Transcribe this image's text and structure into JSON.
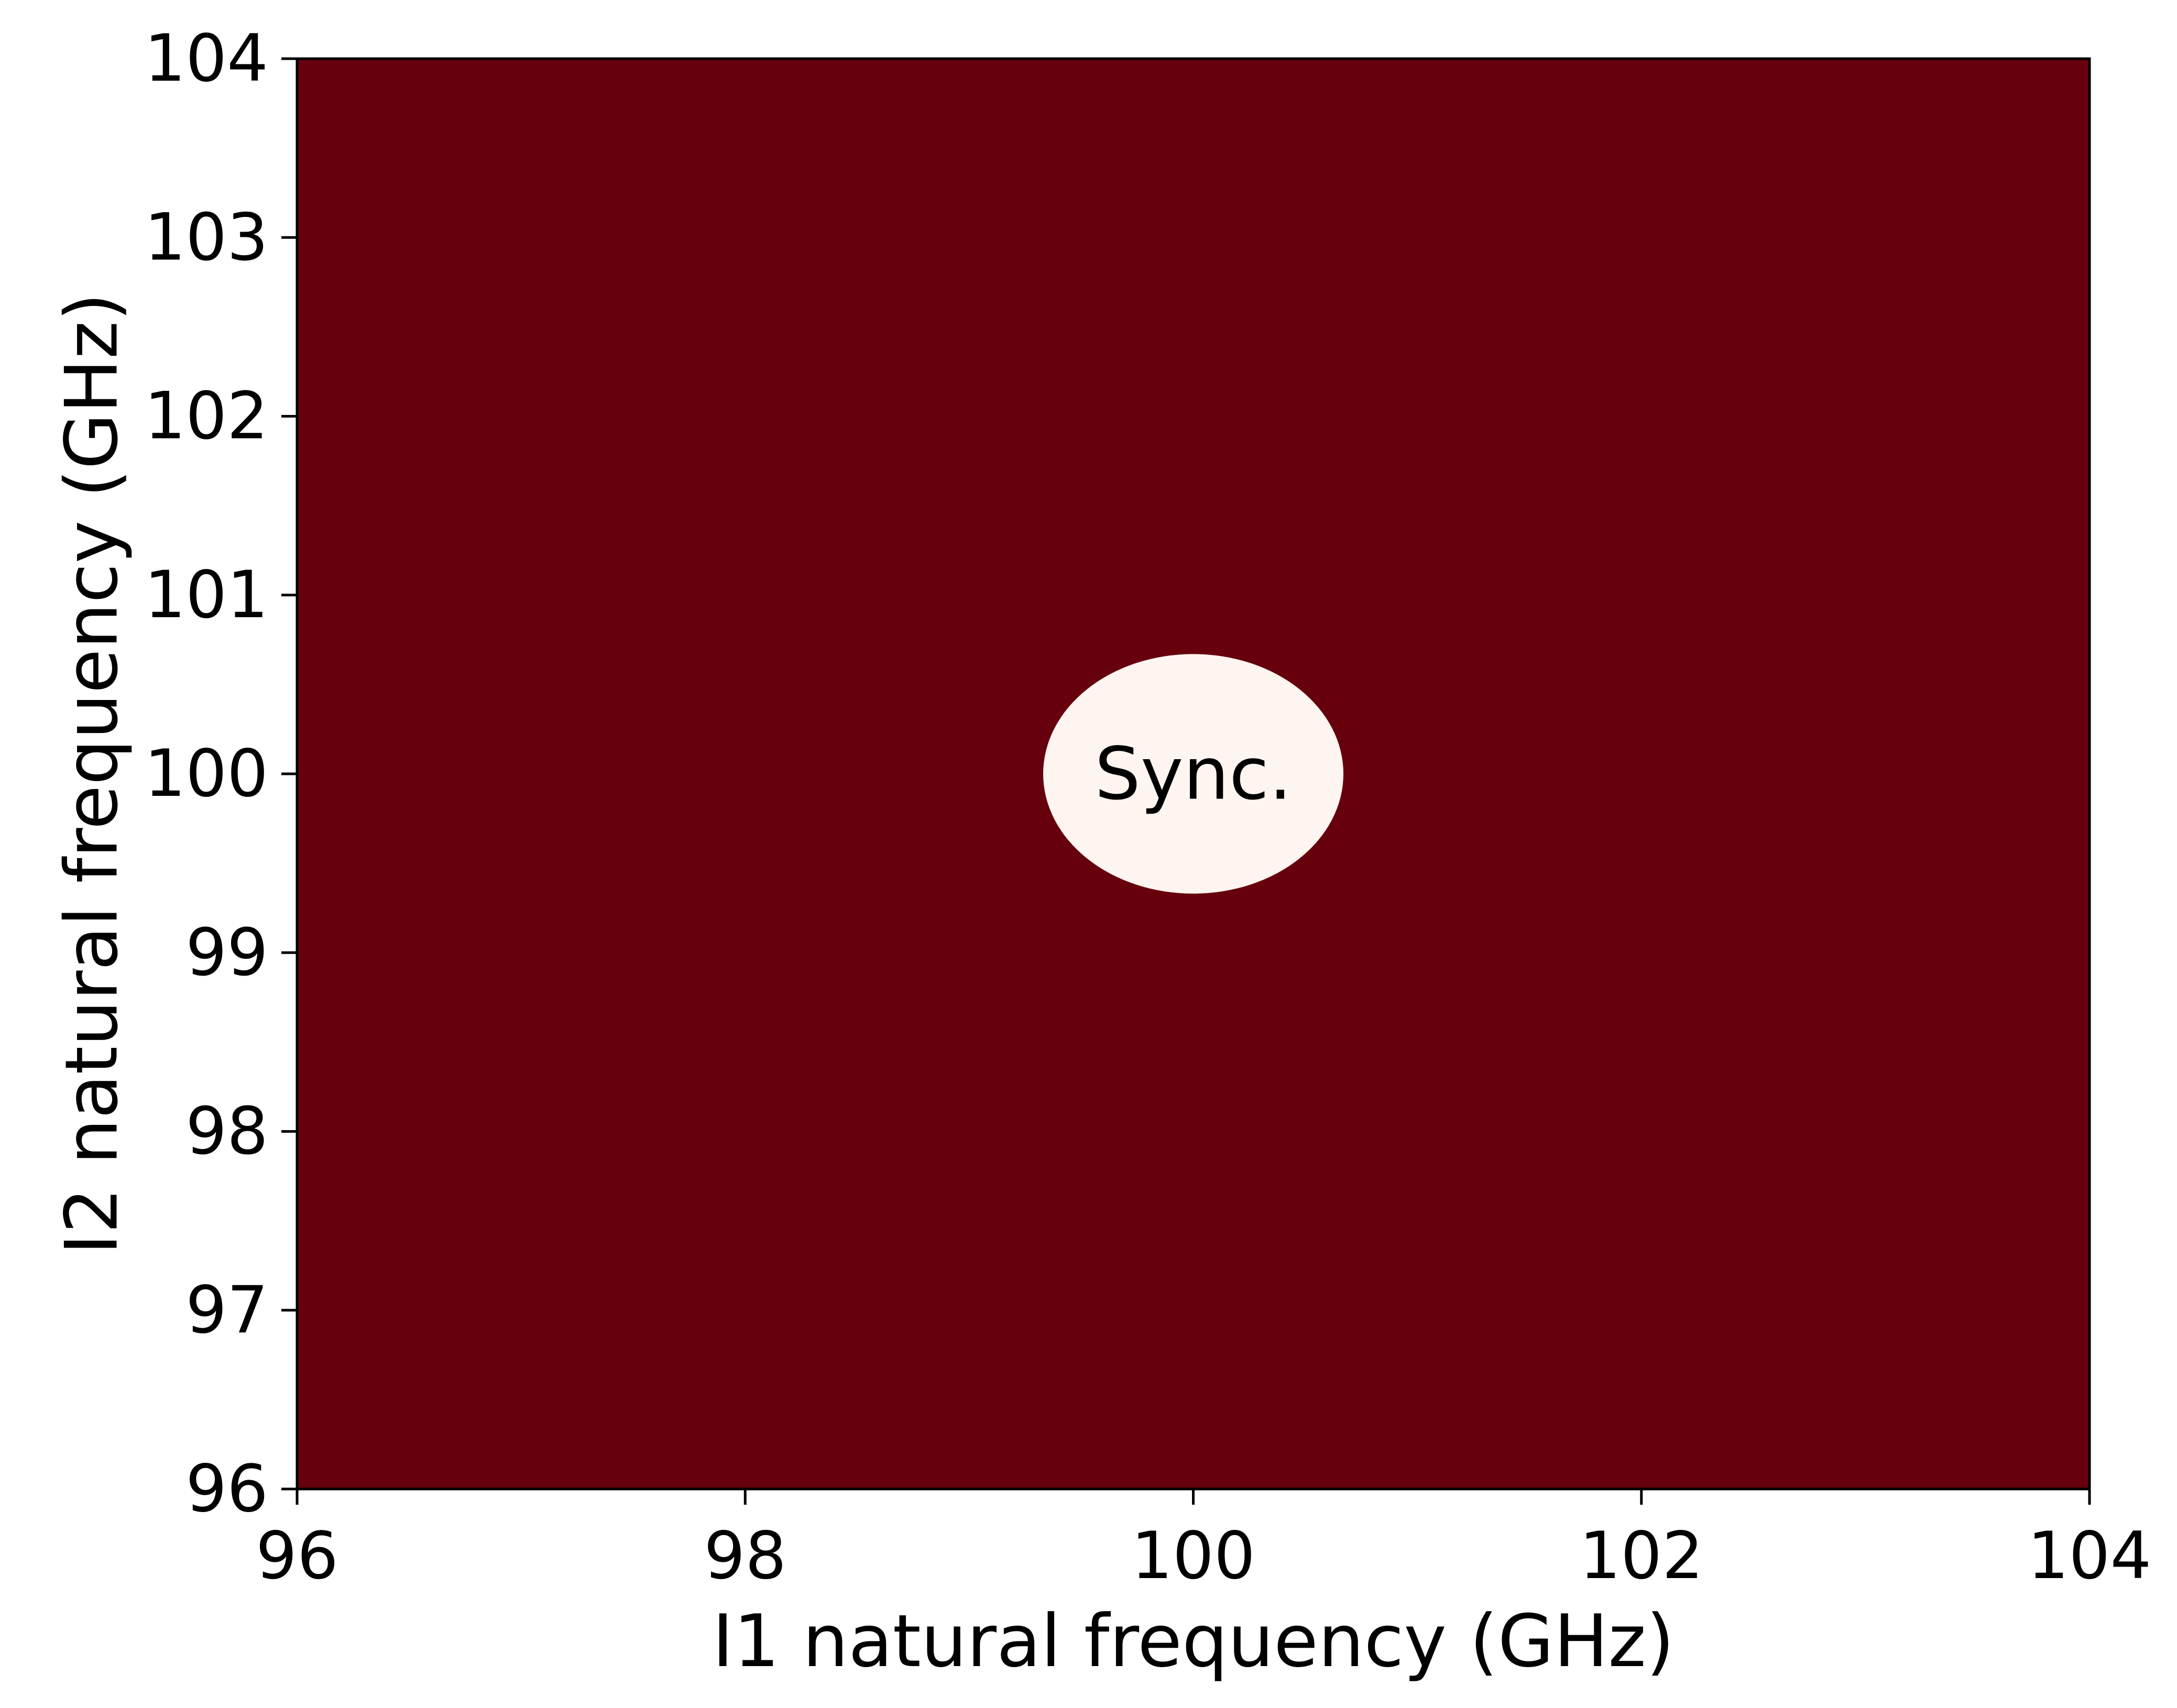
{
  "chart_data": {
    "type": "heatmap",
    "title": "",
    "xlabel": "I1 natural frequency (GHz)",
    "ylabel": "I2 natural frequency (GHz)",
    "xlim": [
      96,
      104
    ],
    "ylim": [
      96,
      104
    ],
    "x_ticks": [
      96,
      98,
      100,
      102,
      104
    ],
    "y_ticks": [
      96,
      97,
      98,
      99,
      100,
      101,
      102,
      103,
      104
    ],
    "grid": false,
    "colormap": "Reds",
    "background_region": {
      "color": "#67000d"
    },
    "sync_region": {
      "shape": "ellipse",
      "center": [
        100,
        100
      ],
      "x_half_width": 0.67,
      "y_half_width": 0.67,
      "color": "#fff5f0",
      "label": "Sync."
    }
  }
}
